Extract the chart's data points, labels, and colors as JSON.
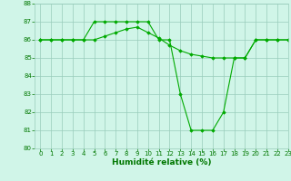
{
  "line1_x": [
    0,
    1,
    2,
    3,
    4,
    5,
    6,
    7,
    8,
    9,
    10,
    11,
    12,
    13,
    14,
    15,
    16,
    17,
    18,
    19,
    20,
    21,
    22,
    23
  ],
  "line1_y": [
    86,
    86,
    86,
    86,
    86,
    87,
    87,
    87,
    87,
    87,
    87,
    86,
    86,
    83,
    81,
    81,
    81,
    82,
    85,
    85,
    86,
    86,
    86,
    86
  ],
  "line2_x": [
    0,
    1,
    2,
    3,
    4,
    5,
    6,
    7,
    8,
    9,
    10,
    11,
    12,
    13,
    14,
    15,
    16,
    17,
    18,
    19,
    20,
    21,
    22,
    23
  ],
  "line2_y": [
    86,
    86,
    86,
    86,
    86,
    86,
    86.2,
    86.4,
    86.6,
    86.7,
    86.4,
    86.1,
    85.7,
    85.4,
    85.2,
    85.1,
    85.0,
    85.0,
    85.0,
    85.0,
    86,
    86,
    86,
    86
  ],
  "line_color": "#00aa00",
  "marker": "D",
  "markersize": 1.8,
  "linewidth": 0.8,
  "xlabel": "Humidité relative (%)",
  "xlabel_color": "#007700",
  "xlabel_fontsize": 6.5,
  "bg_color": "#d0f5e8",
  "grid_color": "#99ccbb",
  "tick_color": "#007700",
  "tick_fontsize": 5.0,
  "ylim": [
    80,
    88
  ],
  "xlim": [
    -0.5,
    23
  ],
  "yticks": [
    80,
    81,
    82,
    83,
    84,
    85,
    86,
    87,
    88
  ],
  "xticks": [
    0,
    1,
    2,
    3,
    4,
    5,
    6,
    7,
    8,
    9,
    10,
    11,
    12,
    13,
    14,
    15,
    16,
    17,
    18,
    19,
    20,
    21,
    22,
    23
  ]
}
